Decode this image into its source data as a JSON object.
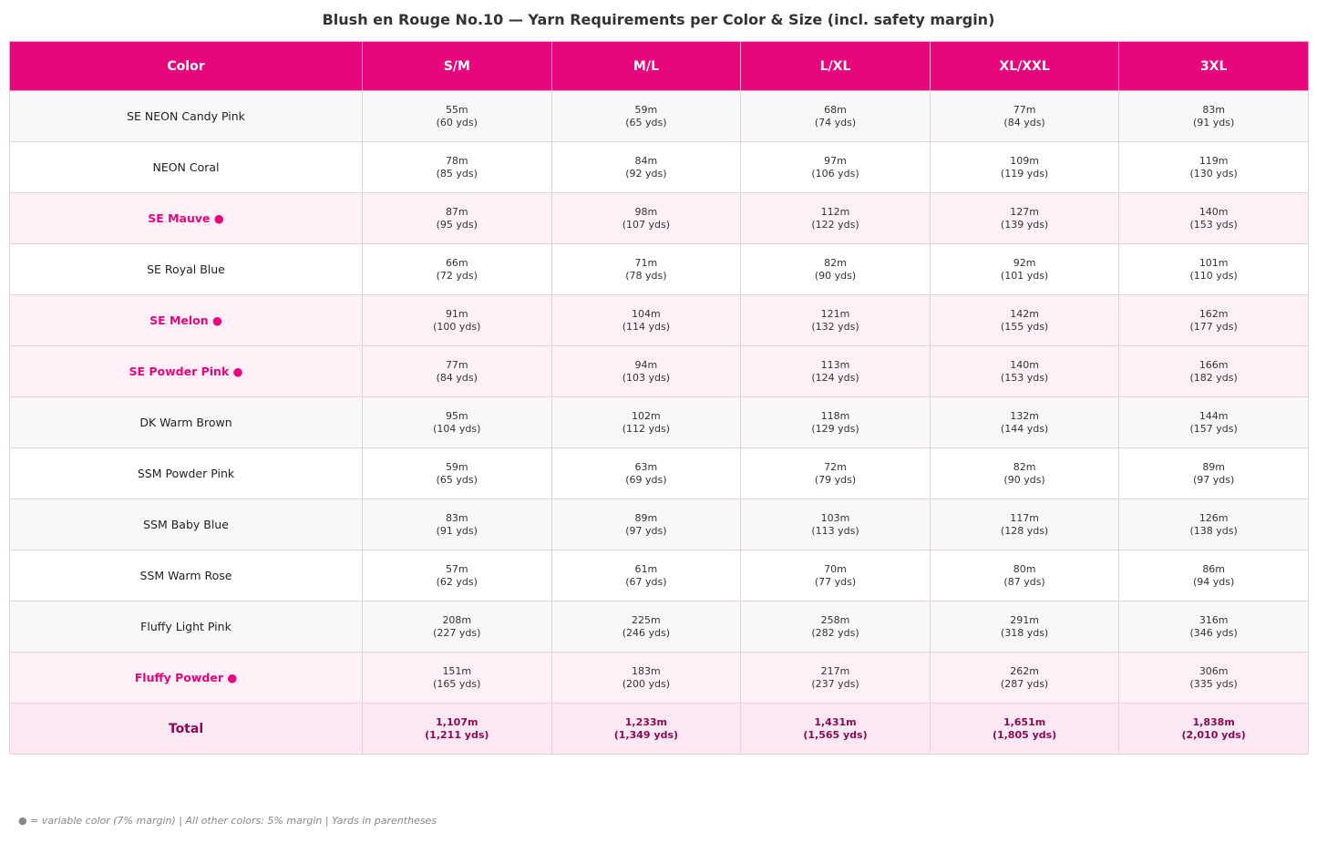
{
  "chart_data": {
    "type": "table",
    "title": "Blush en Rouge No.10 — Yarn Requirements per Color & Size (incl. safety margin)",
    "columns": [
      "Color",
      "S/M",
      "M/L",
      "L/XL",
      "XL/XXL",
      "3XL"
    ],
    "rows": [
      {
        "color": "SE NEON Candy Pink",
        "variable": false,
        "values": [
          [
            "55m",
            "(60 yds)"
          ],
          [
            "59m",
            "(65 yds)"
          ],
          [
            "68m",
            "(74 yds)"
          ],
          [
            "77m",
            "(84 yds)"
          ],
          [
            "83m",
            "(91 yds)"
          ]
        ]
      },
      {
        "color": "NEON Coral",
        "variable": false,
        "values": [
          [
            "78m",
            "(85 yds)"
          ],
          [
            "84m",
            "(92 yds)"
          ],
          [
            "97m",
            "(106 yds)"
          ],
          [
            "109m",
            "(119 yds)"
          ],
          [
            "119m",
            "(130 yds)"
          ]
        ]
      },
      {
        "color": "SE Mauve ●",
        "variable": true,
        "values": [
          [
            "87m",
            "(95 yds)"
          ],
          [
            "98m",
            "(107 yds)"
          ],
          [
            "112m",
            "(122 yds)"
          ],
          [
            "127m",
            "(139 yds)"
          ],
          [
            "140m",
            "(153 yds)"
          ]
        ]
      },
      {
        "color": "SE Royal Blue",
        "variable": false,
        "values": [
          [
            "66m",
            "(72 yds)"
          ],
          [
            "71m",
            "(78 yds)"
          ],
          [
            "82m",
            "(90 yds)"
          ],
          [
            "92m",
            "(101 yds)"
          ],
          [
            "101m",
            "(110 yds)"
          ]
        ]
      },
      {
        "color": "SE Melon ●",
        "variable": true,
        "values": [
          [
            "91m",
            "(100 yds)"
          ],
          [
            "104m",
            "(114 yds)"
          ],
          [
            "121m",
            "(132 yds)"
          ],
          [
            "142m",
            "(155 yds)"
          ],
          [
            "162m",
            "(177 yds)"
          ]
        ]
      },
      {
        "color": "SE Powder Pink ●",
        "variable": true,
        "values": [
          [
            "77m",
            "(84 yds)"
          ],
          [
            "94m",
            "(103 yds)"
          ],
          [
            "113m",
            "(124 yds)"
          ],
          [
            "140m",
            "(153 yds)"
          ],
          [
            "166m",
            "(182 yds)"
          ]
        ]
      },
      {
        "color": "DK Warm Brown",
        "variable": false,
        "values": [
          [
            "95m",
            "(104 yds)"
          ],
          [
            "102m",
            "(112 yds)"
          ],
          [
            "118m",
            "(129 yds)"
          ],
          [
            "132m",
            "(144 yds)"
          ],
          [
            "144m",
            "(157 yds)"
          ]
        ]
      },
      {
        "color": "SSM Powder Pink",
        "variable": false,
        "values": [
          [
            "59m",
            "(65 yds)"
          ],
          [
            "63m",
            "(69 yds)"
          ],
          [
            "72m",
            "(79 yds)"
          ],
          [
            "82m",
            "(90 yds)"
          ],
          [
            "89m",
            "(97 yds)"
          ]
        ]
      },
      {
        "color": "SSM Baby Blue",
        "variable": false,
        "values": [
          [
            "83m",
            "(91 yds)"
          ],
          [
            "89m",
            "(97 yds)"
          ],
          [
            "103m",
            "(113 yds)"
          ],
          [
            "117m",
            "(128 yds)"
          ],
          [
            "126m",
            "(138 yds)"
          ]
        ]
      },
      {
        "color": "SSM Warm Rose",
        "variable": false,
        "values": [
          [
            "57m",
            "(62 yds)"
          ],
          [
            "61m",
            "(67 yds)"
          ],
          [
            "70m",
            "(77 yds)"
          ],
          [
            "80m",
            "(87 yds)"
          ],
          [
            "86m",
            "(94 yds)"
          ]
        ]
      },
      {
        "color": "Fluffy Light Pink",
        "variable": false,
        "values": [
          [
            "208m",
            "(227 yds)"
          ],
          [
            "225m",
            "(246 yds)"
          ],
          [
            "258m",
            "(282 yds)"
          ],
          [
            "291m",
            "(318 yds)"
          ],
          [
            "316m",
            "(346 yds)"
          ]
        ]
      },
      {
        "color": "Fluffy Powder ●",
        "variable": true,
        "values": [
          [
            "151m",
            "(165 yds)"
          ],
          [
            "183m",
            "(200 yds)"
          ],
          [
            "217m",
            "(237 yds)"
          ],
          [
            "262m",
            "(287 yds)"
          ],
          [
            "306m",
            "(335 yds)"
          ]
        ]
      }
    ],
    "total": {
      "label": "Total",
      "values": [
        [
          "1,107m",
          "(1,211 yds)"
        ],
        [
          "1,233m",
          "(1,349 yds)"
        ],
        [
          "1,431m",
          "(1,565 yds)"
        ],
        [
          "1,651m",
          "(1,805 yds)"
        ],
        [
          "1,838m",
          "(2,010 yds)"
        ]
      ]
    },
    "footnote": "● = variable color (7% margin)  |  All other colors: 5% margin  |  Yards in parentheses"
  },
  "colors": {
    "header_bg": "#e8067d",
    "header_text": "#ffffff",
    "variable_text": "#e8067d",
    "variable_row_bg": "#fff0f7",
    "total_row_bg": "#fce8f2",
    "total_text": "#8b0a55",
    "striped_row_bg": "#f8f8f8"
  }
}
